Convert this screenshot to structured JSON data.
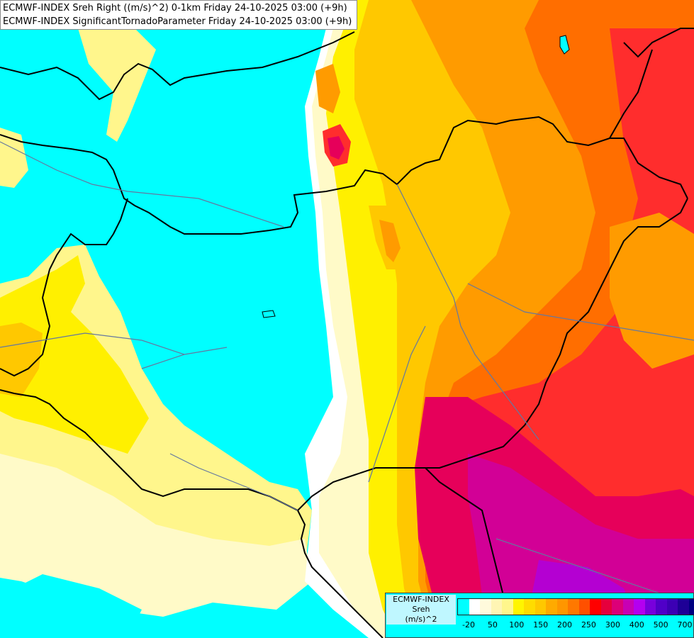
{
  "title": {
    "line1": "ECMWF-INDEX Sreh Right ((m/s)^2) 0-1km Friday 24-10-2025 03:00 (+9h)",
    "line2": "ECMWF-INDEX SignificantTornadoParameter Friday 24-10-2025 03:00 (+9h)"
  },
  "legend": {
    "source": "ECMWF-INDEX",
    "variable": "Sreh",
    "unit": "(m/s)^2",
    "colors": [
      "#00FFFF",
      "#FFFFFF",
      "#FFFADC",
      "#FFF5B4",
      "#FFF68C",
      "#FFF500",
      "#FFDC00",
      "#FFC800",
      "#FFAA00",
      "#FF9600",
      "#FF7800",
      "#FF5000",
      "#FF0000",
      "#E6003C",
      "#DC0078",
      "#C800B4",
      "#B400F0",
      "#7800DC",
      "#5000C8",
      "#3C00B4",
      "#1E0096",
      "#000080"
    ],
    "ticks": [
      "-20",
      "50",
      "100",
      "150",
      "200",
      "250",
      "300",
      "400",
      "500",
      "700"
    ]
  },
  "map": {
    "field_colors": {
      "cyan": "#00FFFF",
      "white": "#FFFFFF",
      "pale": "#FFFAC8",
      "light_yellow": "#FFF68C",
      "yellow": "#FFF000",
      "gold": "#FFC800",
      "orange": "#FF9B00",
      "dark_orange": "#FF6E00",
      "red": "#FF2D2D",
      "crimson": "#E6005A",
      "magenta": "#D20096",
      "purple": "#B400D2"
    },
    "border_color": "#000000",
    "river_color": "#6478A0"
  }
}
